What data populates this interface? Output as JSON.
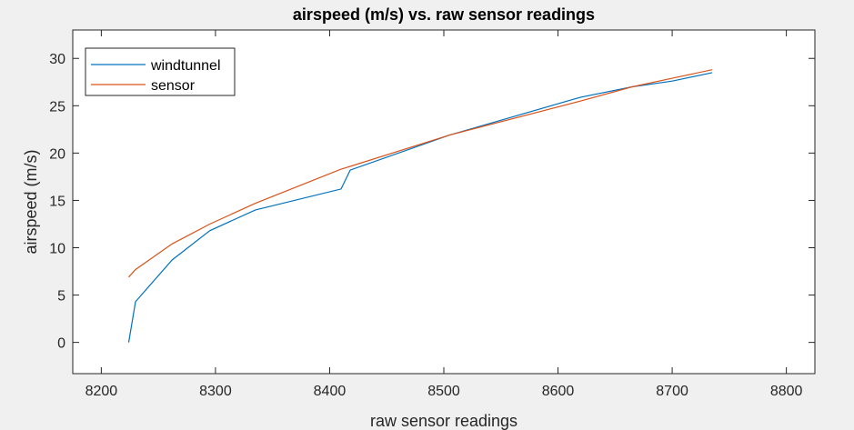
{
  "chart_data": {
    "type": "line",
    "title": "airspeed (m/s) vs. raw sensor readings",
    "xlabel": "raw sensor readings",
    "ylabel": "airspeed (m/s)",
    "xlim": [
      8175,
      8825
    ],
    "ylim": [
      -3.3,
      33
    ],
    "xticks": [
      8200,
      8300,
      8400,
      8500,
      8600,
      8700,
      8800
    ],
    "yticks": [
      0,
      5,
      10,
      15,
      20,
      25,
      30
    ],
    "grid": false,
    "legend_position": "top-left",
    "series": [
      {
        "name": "windtunnel",
        "color": "#0072BD",
        "x": [
          8224,
          8230,
          8262,
          8295,
          8335,
          8410,
          8418,
          8505,
          8620,
          8665,
          8700,
          8735
        ],
        "y": [
          0,
          4.3,
          8.7,
          11.8,
          14.0,
          16.2,
          18.2,
          21.9,
          25.9,
          27.0,
          27.6,
          28.5
        ]
      },
      {
        "name": "sensor",
        "color": "#D95319",
        "x": [
          8224,
          8230,
          8262,
          8295,
          8335,
          8410,
          8418,
          8505,
          8620,
          8665,
          8700,
          8735
        ],
        "y": [
          6.9,
          7.7,
          10.4,
          12.5,
          14.7,
          18.3,
          18.6,
          21.9,
          25.5,
          27.0,
          27.9,
          28.8
        ]
      }
    ]
  }
}
